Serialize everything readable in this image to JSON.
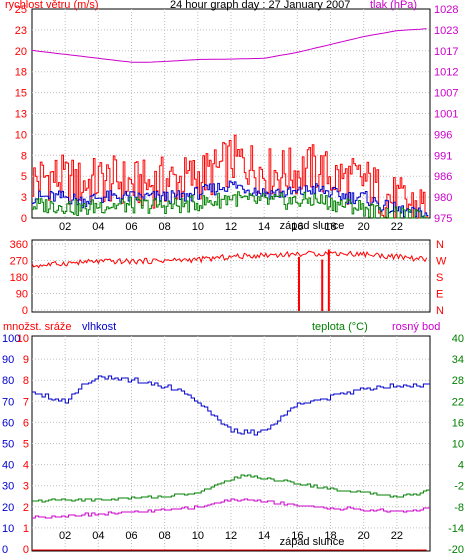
{
  "chart_data": [
    {
      "type": "line",
      "title": "24 hour graph day : 27 January 2007",
      "left_axis_label": "rychlost větru (m/s)",
      "right_axis_label": "tlak (hPa)",
      "x_label": "západ slunce",
      "x_ticks": [
        "02",
        "04",
        "06",
        "08",
        "10",
        "12",
        "14",
        "16",
        "18",
        "20",
        "22"
      ],
      "left_ticks": [
        "25",
        "23",
        "20",
        "18",
        "15",
        "13",
        "10",
        "8",
        "5",
        "3",
        "0"
      ],
      "right_ticks": [
        "1028",
        "1023",
        "1017",
        "1012",
        "1007",
        "1001",
        "996",
        "991",
        "986",
        "980",
        "975"
      ],
      "xlim": [
        0,
        24
      ],
      "ylim_left": [
        0,
        25
      ],
      "ylim_right": [
        975,
        1028
      ],
      "series": [
        {
          "color": "#ff0000",
          "axis": "left",
          "x": [
            0,
            1,
            2,
            3,
            4,
            5,
            6,
            7,
            8,
            9,
            10,
            11,
            12,
            13,
            14,
            15,
            16,
            17,
            18,
            19,
            20,
            21,
            22,
            23,
            23.8
          ],
          "y": [
            4.5,
            5,
            4.5,
            4,
            4.5,
            4.5,
            4,
            4,
            4.5,
            4.5,
            5,
            5.5,
            7,
            6.5,
            5.5,
            5.5,
            5.5,
            6,
            5,
            4.5,
            4.5,
            3,
            2,
            1.5,
            1.5
          ]
        },
        {
          "color": "#0000cc",
          "axis": "left",
          "x": [
            0,
            1,
            2,
            3,
            4,
            5,
            6,
            7,
            8,
            9,
            10,
            11,
            12,
            13,
            14,
            15,
            16,
            17,
            18,
            19,
            20,
            21,
            22,
            23,
            23.8
          ],
          "y": [
            2.5,
            2.5,
            2.5,
            2,
            2.5,
            2.5,
            2.5,
            2.5,
            2.5,
            2.5,
            3,
            3.5,
            4,
            3.5,
            3,
            3,
            3,
            3.5,
            3,
            2.5,
            2.5,
            1.5,
            1,
            0.5,
            0.5
          ]
        },
        {
          "color": "#008000",
          "axis": "left",
          "x": [
            0,
            1,
            2,
            3,
            4,
            5,
            6,
            7,
            8,
            9,
            10,
            11,
            12,
            13,
            14,
            15,
            16,
            17,
            18,
            19,
            20,
            21,
            22,
            23,
            23.8
          ],
          "y": [
            1.5,
            1.5,
            1.5,
            1,
            1.5,
            1.5,
            1.5,
            1.5,
            1.5,
            1.5,
            1.8,
            2,
            2.5,
            2,
            2,
            2,
            2,
            2.2,
            1.8,
            1.5,
            1.2,
            0.5,
            0.3,
            0,
            0
          ]
        },
        {
          "color": "#cc00cc",
          "axis": "right",
          "x": [
            0,
            2,
            4,
            6,
            7,
            8,
            10,
            12,
            14,
            16,
            18,
            20,
            22,
            23.8
          ],
          "y": [
            1017.5,
            1016.5,
            1015.5,
            1014.5,
            1014.5,
            1014.7,
            1015.2,
            1015.3,
            1015.5,
            1017,
            1019,
            1021,
            1022.5,
            1023
          ]
        }
      ]
    },
    {
      "type": "scatter",
      "left_ticks": [
        "360",
        "270",
        "180",
        "90",
        "0"
      ],
      "right_ticks": [
        "N",
        "W",
        "S",
        "E",
        "N"
      ],
      "ylim": [
        0,
        360
      ],
      "series": [
        {
          "color": "#ff0000",
          "x": [
            0,
            2,
            4,
            6,
            8,
            10,
            12,
            14,
            16,
            18,
            20,
            22,
            23.8
          ],
          "y": [
            240,
            255,
            265,
            265,
            270,
            275,
            290,
            300,
            305,
            310,
            305,
            290,
            275
          ]
        }
      ]
    },
    {
      "type": "line",
      "left_axis_label_1": "množst. sráže",
      "left_axis_label_2": "vlhkost",
      "right_label_1": "teplota (°C)",
      "right_label_2": "rosný bod",
      "x_label": "západ slunce",
      "x_ticks": [
        "02",
        "04",
        "06",
        "08",
        "10",
        "12",
        "14",
        "16",
        "18",
        "20",
        "22"
      ],
      "outer_left_ticks": [
        "10",
        "9",
        "8",
        "7",
        "6",
        "5",
        "4",
        "3",
        "2",
        "1",
        "0"
      ],
      "inner_left_ticks": [
        "100",
        "90",
        "80",
        "70",
        "60",
        "50",
        "40",
        "30",
        "20",
        "10",
        "0"
      ],
      "right_ticks": [
        "40",
        "34",
        "28",
        "22",
        "16",
        "10",
        "4",
        "-2",
        "-8",
        "-14",
        "-20"
      ],
      "ylim_humidity": [
        0,
        100
      ],
      "ylim_temperature": [
        -20,
        40
      ],
      "series": [
        {
          "color": "#0000cc",
          "axis": "humidity",
          "x": [
            0,
            1,
            2,
            3,
            4,
            5,
            6,
            7,
            8,
            9,
            10,
            11,
            12,
            13,
            14,
            15,
            16,
            17,
            18,
            19,
            20,
            21,
            22,
            23.8
          ],
          "y": [
            75,
            72,
            70,
            78,
            82,
            80,
            80,
            79,
            77,
            75,
            70,
            62,
            56,
            55,
            56,
            62,
            70,
            70,
            72,
            74,
            76,
            77,
            78,
            78
          ]
        },
        {
          "color": "#008000",
          "axis": "temperature",
          "x": [
            0,
            2,
            4,
            6,
            8,
            10,
            11,
            12,
            13,
            14,
            15,
            16,
            17,
            18,
            19,
            20,
            21,
            22,
            23,
            23.8
          ],
          "y": [
            -6.5,
            -6,
            -6,
            -5.5,
            -5,
            -4,
            -2,
            0,
            1,
            0,
            -0.5,
            -1.5,
            -2,
            -3,
            -3.5,
            -4,
            -4.5,
            -5,
            -4.5,
            -3.5
          ]
        },
        {
          "color": "#cc00cc",
          "axis": "temperature",
          "x": [
            0,
            2,
            4,
            6,
            8,
            10,
            11,
            12,
            13,
            14,
            15,
            16,
            17,
            18,
            19,
            20,
            21,
            22,
            23,
            23.8
          ],
          "y": [
            -11,
            -10.5,
            -10,
            -9.5,
            -9,
            -8,
            -7,
            -6,
            -6,
            -6.5,
            -7,
            -7.5,
            -8,
            -8.5,
            -8.5,
            -9,
            -9,
            -9.5,
            -9,
            -8.5
          ]
        },
        {
          "color": "#ff0000",
          "axis": "precipitation",
          "x": [
            0,
            23.8
          ],
          "y": [
            0,
            0
          ]
        }
      ]
    }
  ],
  "colors": {
    "left_axis_label": "#ff0000",
    "right_axis_label": "#cc00cc",
    "title": "#000000",
    "humidity_label": "#0000cc",
    "temperature_label": "#008000",
    "dewpoint_label": "#cc00cc",
    "grid": "#c0c0c0"
  }
}
